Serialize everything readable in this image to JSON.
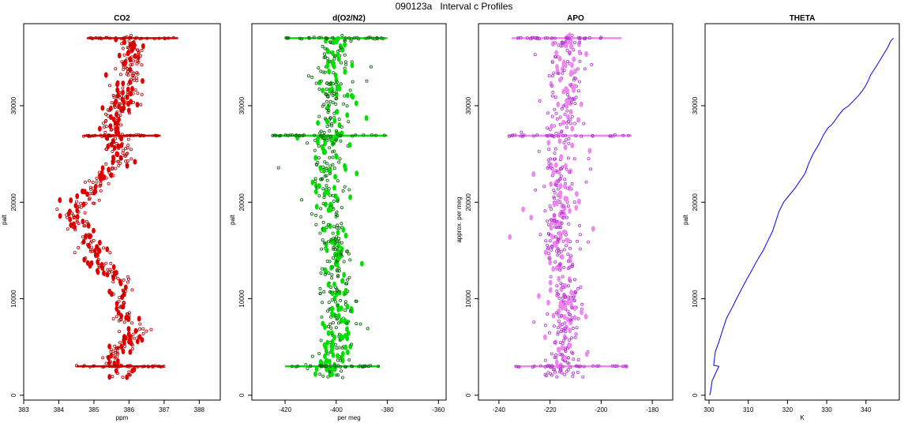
{
  "title": "090123a   Interval c Profiles",
  "chart_data": [
    {
      "type": "scatter",
      "title": "CO2",
      "xlabel": "ppm",
      "ylabel": "palt",
      "xlim": [
        383,
        388.6
      ],
      "ylim": [
        -500,
        38500
      ],
      "xticks": [
        "383",
        "384",
        "385",
        "386",
        "387",
        "388"
      ],
      "yticks": [
        "0",
        "10000",
        "20000",
        "30000"
      ],
      "color": "#e00000",
      "edge_color": "#b00000",
      "profile": [
        [
          0,
          386.0
        ],
        [
          2000,
          385.9
        ],
        [
          3000,
          385.7
        ],
        [
          4000,
          385.5
        ],
        [
          5500,
          385.9
        ],
        [
          7000,
          386.2
        ],
        [
          8500,
          385.8
        ],
        [
          10000,
          385.6
        ],
        [
          11500,
          385.8
        ],
        [
          13000,
          385.3
        ],
        [
          14500,
          385.1
        ],
        [
          16000,
          384.9
        ],
        [
          17500,
          384.6
        ],
        [
          19000,
          384.5
        ],
        [
          20500,
          384.8
        ],
        [
          22000,
          385.0
        ],
        [
          23500,
          385.6
        ],
        [
          25000,
          385.8
        ],
        [
          26500,
          385.6
        ],
        [
          28000,
          385.5
        ],
        [
          29500,
          385.7
        ],
        [
          31000,
          385.9
        ],
        [
          32500,
          386.1
        ],
        [
          34000,
          386.0
        ],
        [
          35500,
          386.1
        ],
        [
          37000,
          386.0
        ]
      ],
      "spread": 0.55,
      "bands": [
        {
          "y": 37000,
          "x": [
            384.8,
            387.4
          ]
        },
        {
          "y": 26900,
          "x": [
            384.7,
            386.9
          ]
        },
        {
          "y": 3000,
          "x": [
            384.5,
            387.0
          ]
        }
      ]
    },
    {
      "type": "scatter",
      "title": "d(O2/N2)",
      "xlabel": "per meg",
      "ylabel": "palt",
      "xlim": [
        -433,
        -357
      ],
      "ylim": [
        -500,
        38500
      ],
      "xticks": [
        "-420",
        "-400",
        "-380",
        "-360"
      ],
      "yticks": [
        "0",
        "10000",
        "20000",
        "30000"
      ],
      "color": "#00e000",
      "edge_color": "#006000",
      "profile": [
        [
          0,
          -400
        ],
        [
          3000,
          -402
        ],
        [
          6000,
          -399
        ],
        [
          9000,
          -398
        ],
        [
          12000,
          -401
        ],
        [
          15000,
          -400
        ],
        [
          18000,
          -404
        ],
        [
          21000,
          -402
        ],
        [
          24000,
          -404
        ],
        [
          27000,
          -403
        ],
        [
          30000,
          -400
        ],
        [
          33000,
          -401
        ],
        [
          36000,
          -400
        ],
        [
          37000,
          -400
        ]
      ],
      "spread": 9,
      "bands": [
        {
          "y": 37000,
          "x": [
            -420,
            -380
          ]
        },
        {
          "y": 26900,
          "x": [
            -425,
            -380
          ]
        },
        {
          "y": 3000,
          "x": [
            -420,
            -383
          ]
        }
      ]
    },
    {
      "type": "scatter",
      "title": "APO",
      "xlabel": "",
      "ylabel": "approx. per meg",
      "xlim": [
        -248,
        -172
      ],
      "ylim": [
        -500,
        38500
      ],
      "xticks": [
        "-240",
        "-220",
        "-200",
        "-180"
      ],
      "yticks": [
        "0",
        "10000",
        "20000",
        "30000"
      ],
      "color": "#ee88ee",
      "edge_color": "#b030d0",
      "profile": [
        [
          0,
          -215
        ],
        [
          3000,
          -216
        ],
        [
          6000,
          -214
        ],
        [
          9000,
          -213
        ],
        [
          12000,
          -216
        ],
        [
          15000,
          -215
        ],
        [
          18000,
          -218
        ],
        [
          21000,
          -215
        ],
        [
          24000,
          -217
        ],
        [
          27000,
          -216
        ],
        [
          30000,
          -213
        ],
        [
          33000,
          -214
        ],
        [
          36000,
          -213
        ],
        [
          37000,
          -214
        ]
      ],
      "spread": 9,
      "bands": [
        {
          "y": 37000,
          "x": [
            -235,
            -192
          ]
        },
        {
          "y": 26900,
          "x": [
            -236,
            -188
          ]
        },
        {
          "y": 3000,
          "x": [
            -234,
            -190
          ]
        }
      ]
    },
    {
      "type": "line",
      "title": "THETA",
      "xlabel": "K",
      "ylabel": "palt",
      "xlim": [
        299,
        348.5
      ],
      "ylim": [
        -500,
        38500
      ],
      "xticks": [
        "300",
        "310",
        "320",
        "330",
        "340"
      ],
      "yticks": [
        "0",
        "10000",
        "20000",
        "30000"
      ],
      "color": "#0000ee",
      "series": [
        {
          "x": [
            300.2,
            300.4,
            300.8,
            302.5,
            301.2,
            301.6,
            302.5,
            303.5,
            304.5,
            305.8,
            307.0,
            308.3,
            309.6,
            311.0,
            312.3,
            313.8,
            315.0,
            316.2,
            317.0,
            317.8,
            319.0,
            320.6,
            322.0,
            324.5,
            325.4,
            326.5,
            328.0,
            329.2,
            330.3,
            331.2,
            332.0,
            333.0,
            334.2,
            335.6,
            336.8,
            338.0,
            339.0,
            339.8,
            340.6,
            341.2,
            342.5,
            344.0,
            345.5,
            346.3,
            347.0
          ],
          "y": [
            0,
            400,
            1500,
            3000,
            3100,
            4500,
            5500,
            6800,
            8000,
            9000,
            10000,
            11000,
            12000,
            13000,
            14000,
            15000,
            16000,
            17000,
            18000,
            19000,
            20000,
            20800,
            21500,
            23000,
            24000,
            25000,
            26000,
            27000,
            27700,
            28000,
            28400,
            29000,
            29600,
            30000,
            30500,
            31000,
            31500,
            32000,
            32600,
            33200,
            34000,
            35000,
            36000,
            36700,
            37000
          ]
        }
      ]
    }
  ]
}
